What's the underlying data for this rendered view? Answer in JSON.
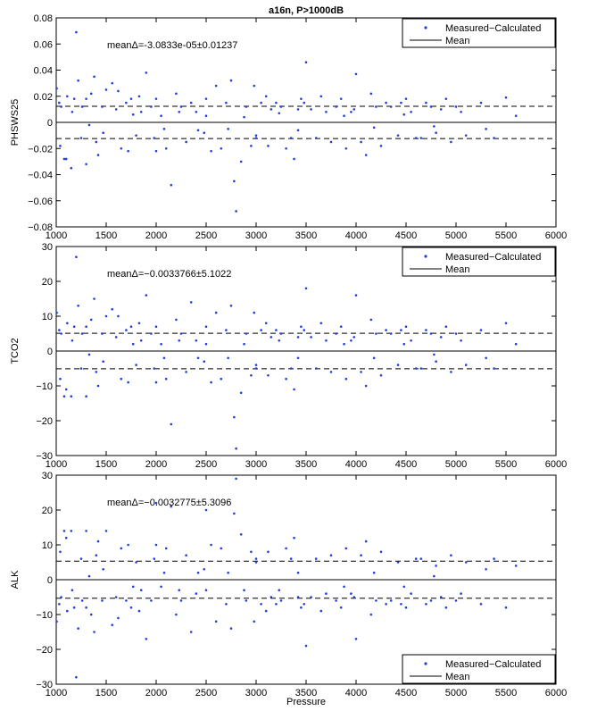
{
  "figure": {
    "title": "a16n, P>1000dB",
    "xlabel": "Pressure"
  },
  "chart_data": [
    {
      "type": "scatter",
      "ylabel": "PHSWS25",
      "annotation": "meanΔ=-3.0833e-05±0.01237",
      "xlim": [
        1000,
        6000
      ],
      "ylim": [
        -0.08,
        0.08
      ],
      "xticks": [
        1000,
        1500,
        2000,
        2500,
        3000,
        3500,
        4000,
        4500,
        5000,
        5500,
        6000
      ],
      "yticks": [
        -0.08,
        -0.06,
        -0.04,
        -0.02,
        0,
        0.02,
        0.04,
        0.06,
        0.08
      ],
      "ytick_labels": [
        "−0.08",
        "−0.06",
        "−0.04",
        "−0.02",
        "0",
        "0.02",
        "0.04",
        "0.06",
        "0.08"
      ],
      "mean": -3.0833e-05,
      "std": 0.01237,
      "legend_position": "top-right",
      "legend": [
        "Measured−Calculated",
        "Mean"
      ],
      "marker_color": "#1f3fd8",
      "series": [
        {
          "name": "Measured−Calculated",
          "x": [
            1005,
            1040,
            1050,
            1080,
            1110,
            1160,
            1200,
            1250,
            1300,
            1380,
            1400,
            1460,
            1500,
            1650,
            1700,
            1750,
            1800,
            1830,
            1850,
            1900,
            1980,
            2000,
            2050,
            2100,
            2200,
            2250,
            2350,
            2480,
            2500,
            2650,
            2700,
            2720,
            2780,
            2800,
            2850,
            2900,
            2980,
            3000,
            3100,
            3120,
            3200,
            3250,
            3300,
            3380,
            3420,
            3480,
            3500,
            3600,
            3650,
            3700,
            3750,
            3800,
            3850,
            3900,
            3980,
            4000,
            4100,
            4200,
            4300,
            4420,
            4500,
            4550,
            4650,
            4700,
            4750,
            4800,
            4850,
            4950,
            5000,
            5050,
            5100,
            5250,
            5300,
            5380,
            5500,
            5600,
            1150,
            1220,
            1350,
            1420,
            1560,
            1620,
            1720,
            1950,
            2150,
            2300,
            2400,
            2550,
            2600,
            2750,
            2950,
            3050,
            3150,
            3350,
            3450,
            3550,
            3950,
            4050,
            4150,
            4250,
            4350,
            4450,
            4600,
            4900,
            1030,
            1300,
            1600,
            2000,
            2500,
            3000,
            1100,
            1260,
            1180,
            1330,
            1470,
            1770,
            2080,
            2230,
            2420,
            2880,
            3230,
            3420,
            3880,
            4180,
            4480,
            4780
          ],
          "y": [
            0.026,
            -0.018,
            0.012,
            -0.028,
            0.02,
            0.008,
            0.069,
            -0.012,
            0.018,
            0.035,
            -0.015,
            0.012,
            0.025,
            -0.02,
            0.015,
            0.018,
            -0.01,
            0.02,
            0.008,
            0.038,
            -0.012,
            0.018,
            0.005,
            -0.02,
            0.022,
            0.012,
            0.015,
            -0.008,
            0.018,
            -0.02,
            0.015,
            -0.005,
            -0.045,
            -0.068,
            -0.03,
            0.012,
            0.028,
            -0.01,
            0.02,
            -0.018,
            0.015,
            0.012,
            -0.02,
            -0.028,
            0.01,
            0.015,
            0.046,
            -0.012,
            0.02,
            0.008,
            -0.015,
            0.012,
            0.018,
            -0.02,
            0.01,
            0.037,
            -0.025,
            0.012,
            0.015,
            -0.01,
            0.018,
            0.008,
            -0.012,
            0.015,
            0.012,
            -0.008,
            0.01,
            -0.015,
            0.012,
            0.008,
            -0.01,
            0.015,
            -0.005,
            -0.012,
            0.019,
            0.005,
            -0.035,
            0.032,
            0.022,
            -0.025,
            0.03,
            0.024,
            -0.022,
            0.012,
            -0.048,
            -0.015,
            0.008,
            -0.022,
            0.028,
            0.032,
            -0.018,
            0.015,
            0.01,
            -0.012,
            0.018,
            0.01,
            0.008,
            -0.015,
            0.022,
            -0.018,
            0.012,
            0.015,
            -0.012,
            0.018,
            0.015,
            -0.032,
            0.01,
            -0.022,
            0.005,
            -0.012,
            -0.028,
            0.012,
            0.018,
            -0.002,
            -0.008,
            0.006,
            -0.005,
            0.008,
            -0.006,
            0.004,
            0.007,
            -0.006,
            0.005,
            -0.004,
            0.006,
            -0.003
          ]
        }
      ]
    },
    {
      "type": "scatter",
      "ylabel": "TCO2",
      "annotation": "meanΔ=−0.0033766±5.1022",
      "xlim": [
        1000,
        6000
      ],
      "ylim": [
        -30,
        30
      ],
      "xticks": [
        1000,
        1500,
        2000,
        2500,
        3000,
        3500,
        4000,
        4500,
        5000,
        5500,
        6000
      ],
      "yticks": [
        -30,
        -20,
        -10,
        0,
        10,
        20,
        30
      ],
      "ytick_labels": [
        "−30",
        "−20",
        "−10",
        "0",
        "10",
        "20",
        "30"
      ],
      "mean": -0.0033766,
      "std": 5.1022,
      "legend_position": "top-right",
      "legend": [
        "Measured−Calculated",
        "Mean"
      ],
      "marker_color": "#1f3fd8",
      "series": [
        {
          "name": "Measured−Calculated",
          "x": [
            1005,
            1040,
            1050,
            1080,
            1110,
            1160,
            1200,
            1250,
            1300,
            1380,
            1400,
            1460,
            1500,
            1650,
            1700,
            1750,
            1800,
            1830,
            1850,
            1900,
            1980,
            2000,
            2050,
            2100,
            2200,
            2250,
            2350,
            2480,
            2500,
            2650,
            2700,
            2720,
            2780,
            2800,
            2850,
            2900,
            2980,
            3000,
            3100,
            3120,
            3200,
            3250,
            3300,
            3380,
            3420,
            3480,
            3500,
            3600,
            3650,
            3700,
            3750,
            3800,
            3850,
            3900,
            3980,
            4000,
            4100,
            4200,
            4300,
            4420,
            4500,
            4550,
            4650,
            4700,
            4750,
            4800,
            4850,
            4950,
            5000,
            5050,
            5100,
            5250,
            5300,
            5380,
            5500,
            5600,
            1150,
            1220,
            1350,
            1420,
            1560,
            1620,
            1720,
            1950,
            2150,
            2300,
            2400,
            2550,
            2600,
            2750,
            2950,
            3050,
            3150,
            3350,
            3450,
            3550,
            3950,
            4050,
            4150,
            4250,
            4350,
            4450,
            4600,
            4900,
            1030,
            1300,
            1600,
            2000,
            2500,
            3000,
            1100,
            1260,
            1180,
            1330,
            1470,
            1770,
            2080,
            2230,
            2420,
            2880,
            3230,
            3420,
            3880,
            4180,
            4480,
            4780
          ],
          "y": [
            11,
            -8,
            5,
            -13,
            8,
            3,
            27,
            -5,
            7,
            15,
            -6,
            5,
            10,
            -8,
            6,
            7,
            -4,
            8,
            3,
            16,
            -5,
            7,
            2,
            -8,
            9,
            5,
            14,
            -3,
            7,
            -8,
            6,
            -2,
            -19,
            -28,
            -12,
            5,
            11,
            -4,
            8,
            -7,
            6,
            5,
            -8,
            -11,
            4,
            6,
            18,
            -5,
            8,
            3,
            -6,
            5,
            7,
            -8,
            4,
            16,
            -10,
            5,
            6,
            -4,
            7,
            3,
            -5,
            6,
            5,
            -3,
            4,
            -6,
            5,
            3,
            -4,
            6,
            -2,
            -5,
            8,
            2,
            -13,
            13,
            9,
            -10,
            12,
            10,
            -9,
            5,
            -21,
            -6,
            3,
            -9,
            11,
            13,
            -7,
            6,
            4,
            -5,
            7,
            4,
            3,
            -6,
            9,
            -7,
            5,
            6,
            -5,
            7,
            6,
            -13,
            4,
            -9,
            2,
            -5,
            -11,
            5,
            7,
            -1,
            -3,
            2,
            -2,
            3,
            -2,
            2,
            3,
            -2,
            2,
            -2,
            2,
            -1
          ]
        }
      ]
    },
    {
      "type": "scatter",
      "ylabel": "ALK",
      "annotation": "meanΔ=−0.0032775±5.3096",
      "xlim": [
        1000,
        6000
      ],
      "ylim": [
        -30,
        30
      ],
      "xticks": [
        1000,
        1500,
        2000,
        2500,
        3000,
        3500,
        4000,
        4500,
        5000,
        5500,
        6000
      ],
      "yticks": [
        -30,
        -20,
        -10,
        0,
        10,
        20,
        30
      ],
      "ytick_labels": [
        "−30",
        "−20",
        "−10",
        "0",
        "10",
        "20",
        "30"
      ],
      "mean": -0.0032775,
      "std": 5.3096,
      "legend_position": "bottom-right",
      "legend": [
        "Measured−Calculated",
        "Mean"
      ],
      "marker_color": "#1f3fd8",
      "series": [
        {
          "name": "Measured−Calculated",
          "x": [
            1005,
            1040,
            1050,
            1080,
            1110,
            1160,
            1200,
            1250,
            1300,
            1380,
            1400,
            1460,
            1500,
            1650,
            1700,
            1750,
            1800,
            1830,
            1850,
            1900,
            1980,
            2000,
            2050,
            2100,
            2200,
            2250,
            2350,
            2480,
            2500,
            2650,
            2700,
            2720,
            2780,
            2800,
            2850,
            2900,
            2980,
            3000,
            3100,
            3120,
            3200,
            3250,
            3300,
            3380,
            3420,
            3480,
            3500,
            3600,
            3650,
            3700,
            3750,
            3800,
            3850,
            3900,
            3980,
            4000,
            4100,
            4200,
            4300,
            4420,
            4500,
            4550,
            4650,
            4700,
            4750,
            4800,
            4850,
            4950,
            5000,
            5050,
            5100,
            5250,
            5300,
            5380,
            5500,
            5600,
            1150,
            1220,
            1350,
            1420,
            1560,
            1620,
            1720,
            1950,
            2150,
            2300,
            2400,
            2550,
            2600,
            2750,
            2950,
            3050,
            3150,
            3350,
            3450,
            3550,
            3950,
            4050,
            4150,
            4250,
            4350,
            4450,
            4600,
            4900,
            1030,
            1300,
            1600,
            2000,
            2500,
            3000,
            1100,
            1260,
            1180,
            1330,
            1470,
            1770,
            2080,
            2230,
            2420,
            2880,
            3230,
            3420,
            3880,
            4180,
            4480,
            4780
          ],
          "y": [
            -12,
            8,
            -5,
            14,
            -9,
            -3,
            -28,
            6,
            -8,
            -15,
            7,
            -6,
            14,
            9,
            -6,
            -8,
            5,
            -9,
            -3,
            -17,
            6,
            22,
            -2,
            9,
            -10,
            -6,
            -15,
            3,
            20,
            9,
            -7,
            2,
            19,
            29,
            13,
            -6,
            -12,
            5,
            -9,
            8,
            -7,
            -6,
            9,
            12,
            -5,
            -7,
            -19,
            6,
            -9,
            -4,
            7,
            -6,
            -8,
            9,
            -5,
            -17,
            11,
            -6,
            -7,
            5,
            -8,
            -4,
            6,
            -7,
            -6,
            4,
            -5,
            7,
            -6,
            -4,
            5,
            -7,
            3,
            6,
            -8,
            4,
            14,
            -14,
            -10,
            11,
            -13,
            -11,
            10,
            -6,
            21,
            7,
            -4,
            10,
            -12,
            -14,
            8,
            -7,
            -5,
            6,
            -8,
            -5,
            -4,
            7,
            -10,
            8,
            -6,
            -7,
            6,
            -8,
            -7,
            14,
            -5,
            10,
            -3,
            6,
            12,
            -6,
            -8,
            1,
            3,
            -2,
            2,
            -3,
            2,
            -3,
            -3,
            2,
            -2,
            2,
            -2,
            1
          ]
        }
      ]
    }
  ]
}
